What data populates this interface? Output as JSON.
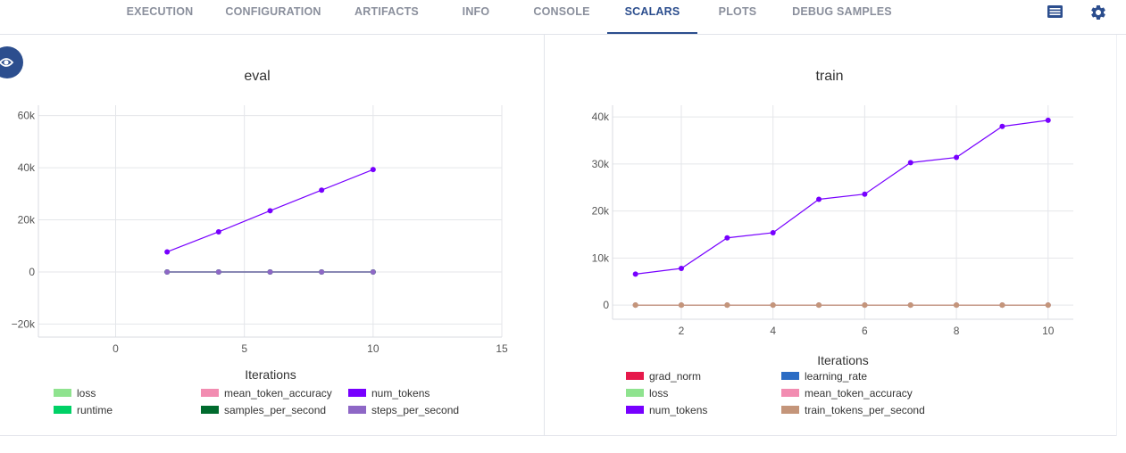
{
  "tabs": [
    {
      "label": "EXECUTION",
      "active": false
    },
    {
      "label": "CONFIGURATION",
      "active": false
    },
    {
      "label": "ARTIFACTS",
      "active": false
    },
    {
      "label": "INFO",
      "active": false
    },
    {
      "label": "CONSOLE",
      "active": false
    },
    {
      "label": "SCALARS",
      "active": true
    },
    {
      "label": "PLOTS",
      "active": false
    },
    {
      "label": "DEBUG SAMPLES",
      "active": false
    }
  ],
  "toolbar_icons": [
    "list-view-icon",
    "settings-gear-icon"
  ],
  "colors": {
    "accent": "#2c4e8e",
    "tab_text": "#8a8f9c"
  },
  "chart_data": [
    {
      "type": "line",
      "title": "eval",
      "xlabel": "Iterations",
      "x_ticks": [
        "0",
        "5",
        "10",
        "15"
      ],
      "y_ticks": [
        "−20k",
        "0",
        "20k",
        "40k",
        "60k"
      ],
      "xlim": [
        -3,
        15
      ],
      "ylim": [
        -25000,
        64000
      ],
      "grid": true,
      "x": [
        2,
        4,
        6,
        8,
        10
      ],
      "series": [
        {
          "name": "loss",
          "color": "#8fe38f",
          "values": [
            0,
            0,
            0,
            0,
            0
          ]
        },
        {
          "name": "mean_token_accuracy",
          "color": "#f28cb1",
          "values": [
            0,
            0,
            0,
            0,
            0
          ]
        },
        {
          "name": "num_tokens",
          "color": "#7700ff",
          "values": [
            7700,
            15400,
            23500,
            31400,
            39300
          ]
        },
        {
          "name": "runtime",
          "color": "#00d166",
          "values": [
            0,
            0,
            0,
            0,
            0
          ]
        },
        {
          "name": "samples_per_second",
          "color": "#006b2e",
          "values": [
            0,
            0,
            0,
            0,
            0
          ]
        },
        {
          "name": "steps_per_second",
          "color": "#8e67c6",
          "values": [
            0,
            0,
            0,
            0,
            0
          ]
        }
      ],
      "legend_placement": "bottom"
    },
    {
      "type": "line",
      "title": "train",
      "xlabel": "Iterations",
      "x_ticks": [
        "2",
        "4",
        "6",
        "8",
        "10"
      ],
      "y_ticks": [
        "0",
        "10k",
        "20k",
        "30k",
        "40k"
      ],
      "xlim": [
        0.5,
        10.55
      ],
      "ylim": [
        -3000,
        42500
      ],
      "grid": true,
      "x": [
        1,
        2,
        3,
        4,
        5,
        6,
        7,
        8,
        9,
        10
      ],
      "series": [
        {
          "name": "grad_norm",
          "color": "#e6194b",
          "values": [
            0,
            0,
            0,
            0,
            0,
            0,
            0,
            0,
            0,
            0
          ]
        },
        {
          "name": "learning_rate",
          "color": "#2b6cc4",
          "values": [
            0,
            0,
            0,
            0,
            0,
            0,
            0,
            0,
            0,
            0
          ]
        },
        {
          "name": "loss",
          "color": "#8fe38f",
          "values": [
            0,
            0,
            0,
            0,
            0,
            0,
            0,
            0,
            0,
            0
          ]
        },
        {
          "name": "mean_token_accuracy",
          "color": "#f28cb1",
          "values": [
            0,
            0,
            0,
            0,
            0,
            0,
            0,
            0,
            0,
            0
          ]
        },
        {
          "name": "num_tokens",
          "color": "#7700ff",
          "values": [
            6600,
            7800,
            14300,
            15400,
            22500,
            23600,
            30300,
            31400,
            38000,
            39300
          ]
        },
        {
          "name": "train_tokens_per_second",
          "color": "#c4957a",
          "values": [
            0,
            0,
            0,
            0,
            0,
            0,
            0,
            0,
            0,
            0
          ]
        }
      ],
      "legend_placement": "bottom"
    }
  ]
}
